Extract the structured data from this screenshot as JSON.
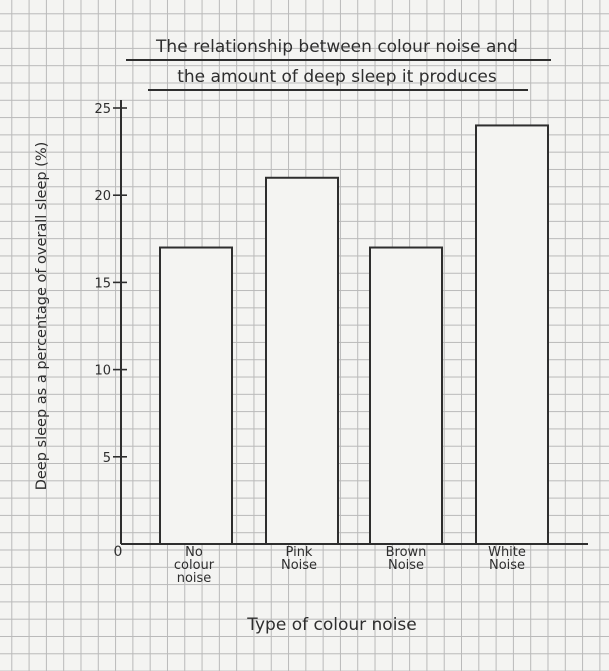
{
  "chart_data": {
    "type": "bar",
    "title_lines": [
      "The relationship between colour noise and",
      "the amount of deep sleep it produces"
    ],
    "xlabel": "Type of colour noise",
    "ylabel": "Deep sleep as a percentage of overall sleep (%)",
    "categories": [
      [
        "No",
        "colour",
        "noise"
      ],
      [
        "Pink",
        "Noise"
      ],
      [
        "Brown",
        "Noise"
      ],
      [
        "White",
        "Noise"
      ]
    ],
    "values": [
      17,
      21,
      17,
      24
    ],
    "ylim": [
      0,
      25
    ],
    "yticks": [
      0,
      5,
      10,
      15,
      20,
      25
    ],
    "grid": true,
    "colors": {
      "ink": "#2e2e2e",
      "bar_fill": "#f4f4f2"
    }
  }
}
